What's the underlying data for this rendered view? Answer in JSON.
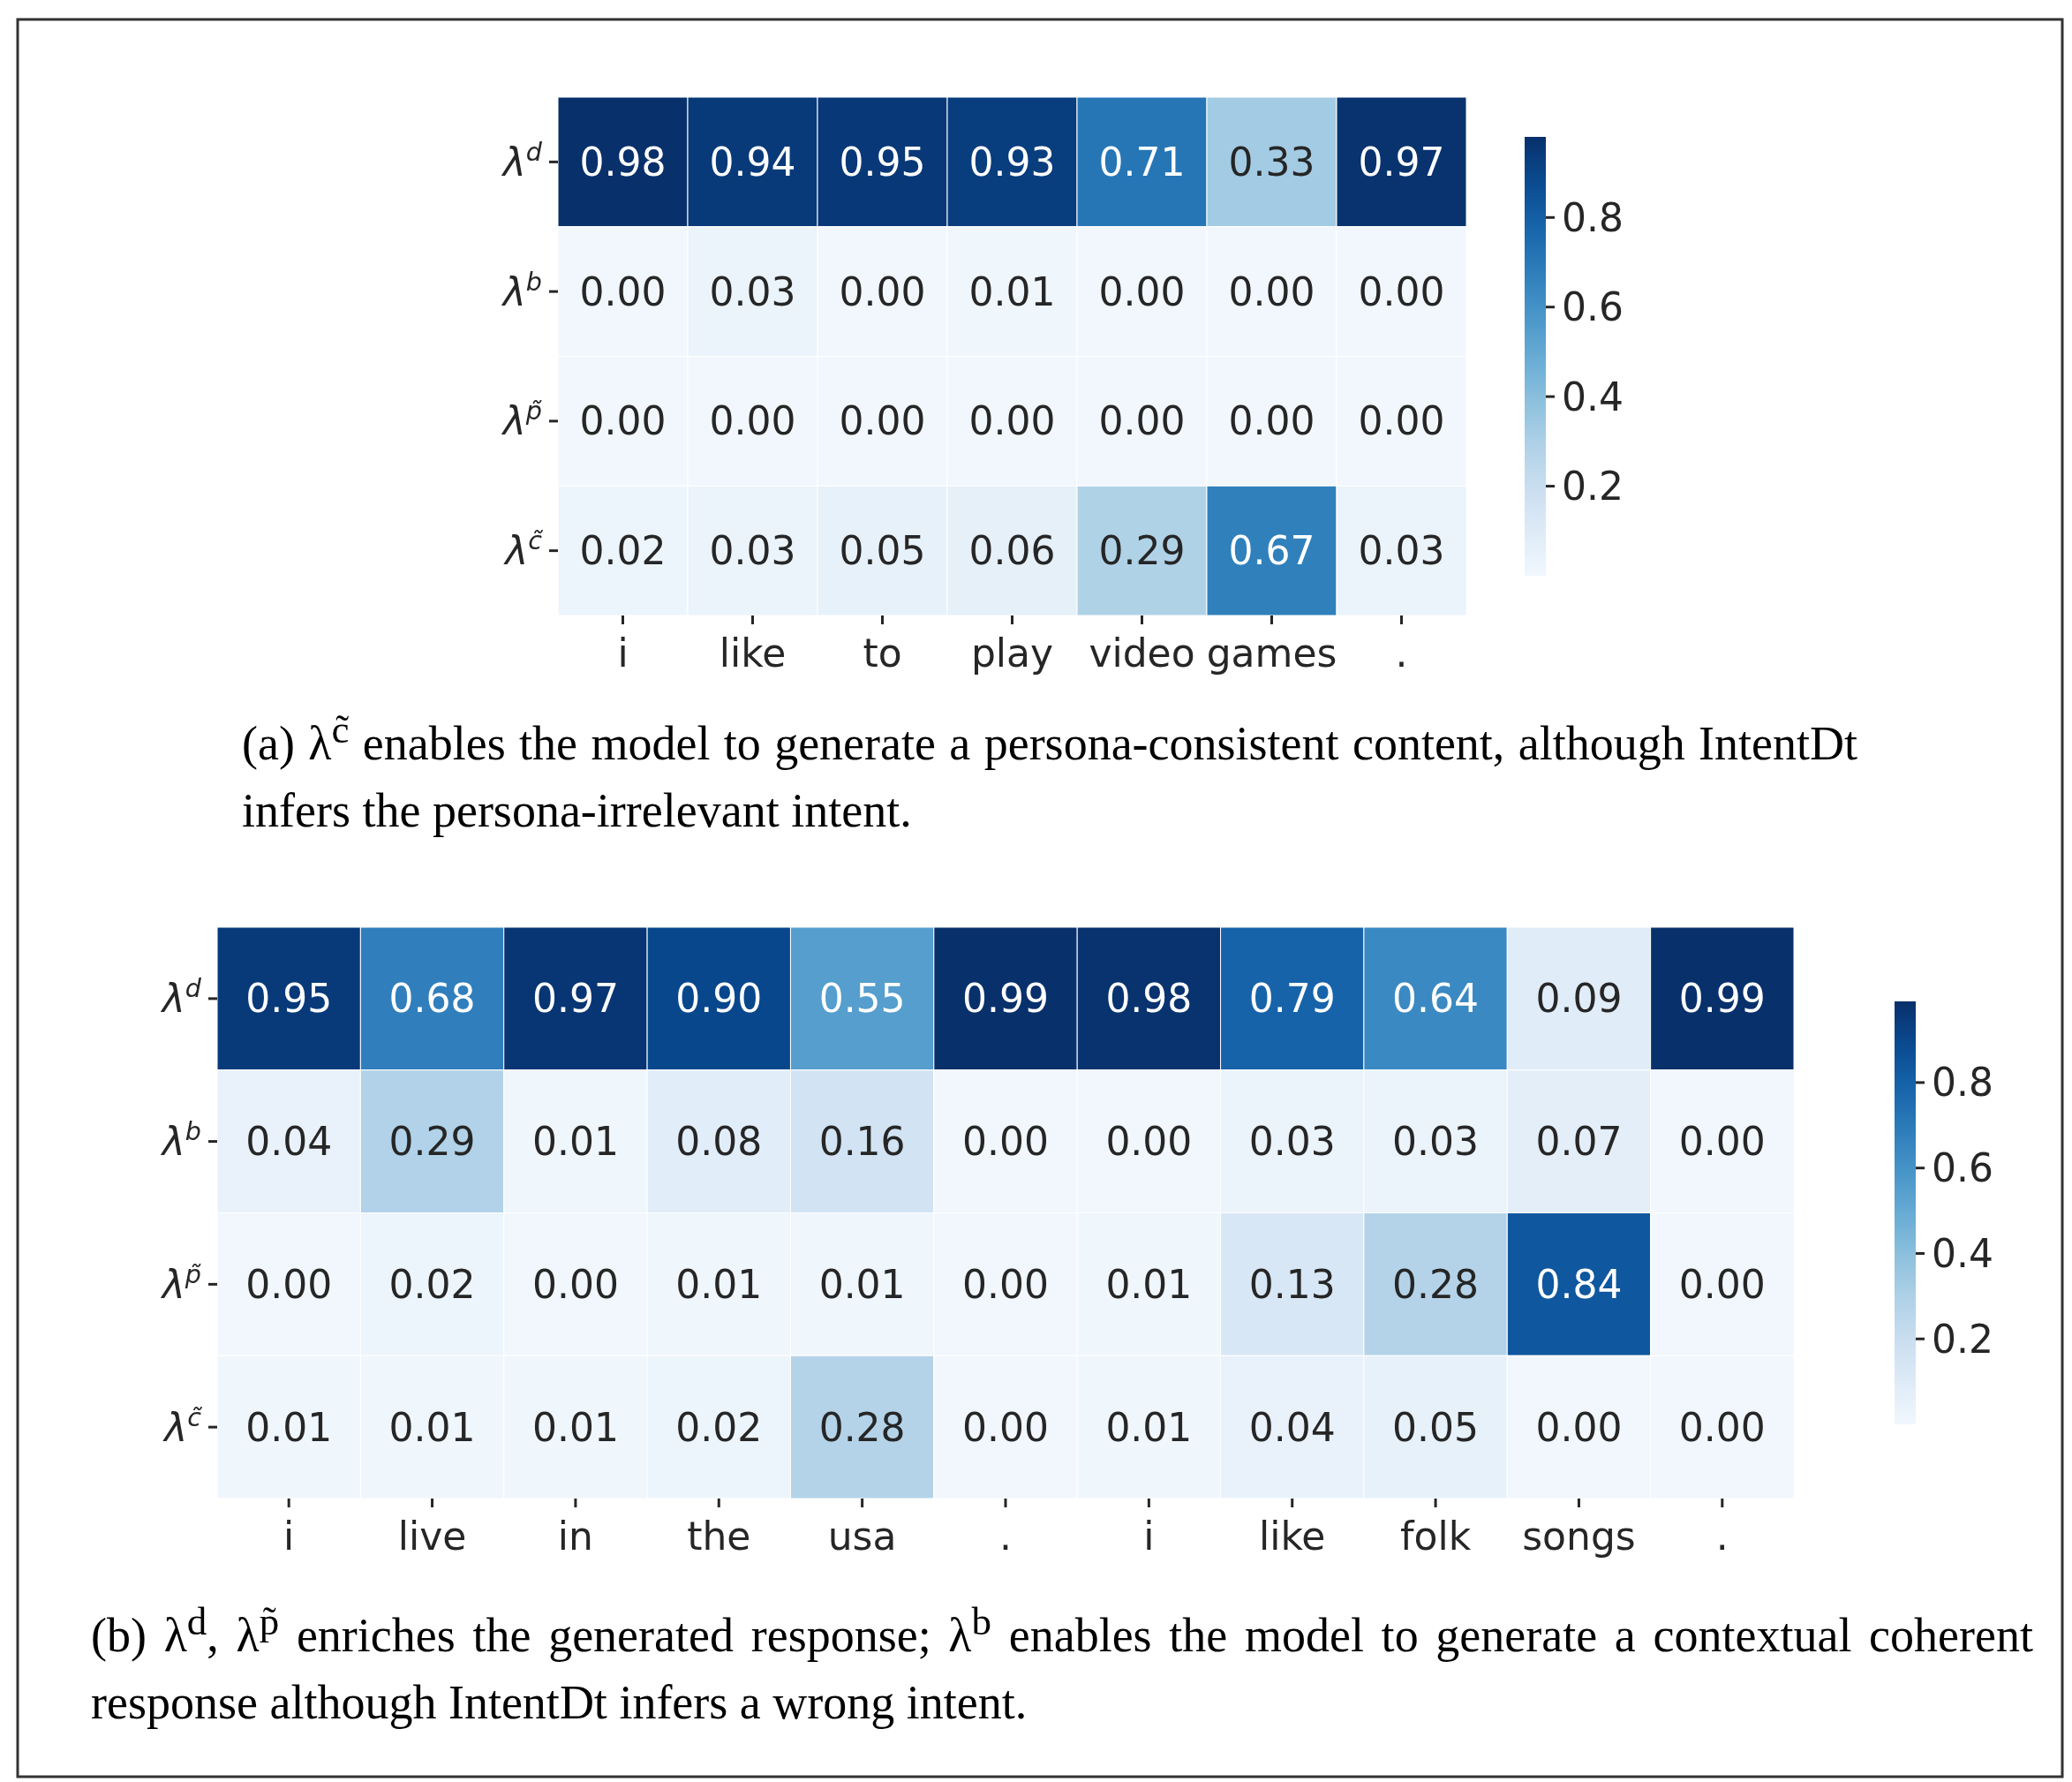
{
  "chart_data": [
    {
      "type": "heatmap",
      "categories": [
        "i",
        "like",
        "to",
        "play",
        "video",
        "games",
        "."
      ],
      "y_categories": [
        "λ$^{d}$",
        "λ$^{b}$",
        "λ$^{p̃}$",
        "λ$^{c̃}$"
      ],
      "cells": [
        [
          0.98,
          0.94,
          0.95,
          0.93,
          0.71,
          0.33,
          0.97
        ],
        [
          0.0,
          0.03,
          0.0,
          0.01,
          0.0,
          0.0,
          0.0
        ],
        [
          0.0,
          0.0,
          0.0,
          0.0,
          0.0,
          0.0,
          0.0
        ],
        [
          0.02,
          0.03,
          0.05,
          0.06,
          0.29,
          0.67,
          0.03
        ]
      ],
      "cell_labels": [
        [
          "0.98",
          "0.94",
          "0.95",
          "0.93",
          "0.71",
          "0.33",
          "0.97"
        ],
        [
          "0.00",
          "0.03",
          "0.00",
          "0.01",
          "0.00",
          "0.00",
          "0.00"
        ],
        [
          "0.00",
          "0.00",
          "0.00",
          "0.00",
          "0.00",
          "0.00",
          "0.00"
        ],
        [
          "0.02",
          "0.03",
          "0.05",
          "0.06",
          "0.29",
          "0.67",
          "0.03"
        ]
      ],
      "clim": [
        0,
        0.98
      ],
      "cticks": [
        0.2,
        0.4,
        0.6,
        0.8
      ],
      "annotations": [
        "(a) λ$^{c̃}$ enables the model to generate a persona-consistent content, although IntentDt infers the persona-irrelevant intent."
      ]
    },
    {
      "type": "heatmap",
      "categories": [
        "i",
        "live",
        "in",
        "the",
        "usa",
        ".",
        "i",
        "like",
        "folk",
        "songs",
        "."
      ],
      "y_categories": [
        "λ$^{d}$",
        "λ$^{b}$",
        "λ$^{p̃}$",
        "λ$^{c̃}$"
      ],
      "cells": [
        [
          0.95,
          0.68,
          0.97,
          0.9,
          0.55,
          0.99,
          0.98,
          0.79,
          0.64,
          0.09,
          0.99
        ],
        [
          0.04,
          0.29,
          0.01,
          0.08,
          0.16,
          0.0,
          0.0,
          0.03,
          0.03,
          0.07,
          0.0
        ],
        [
          0.0,
          0.02,
          0.0,
          0.01,
          0.01,
          0.0,
          0.01,
          0.13,
          0.28,
          0.84,
          0.0
        ],
        [
          0.01,
          0.01,
          0.01,
          0.02,
          0.28,
          0.0,
          0.01,
          0.04,
          0.05,
          0.0,
          0.0
        ]
      ],
      "cell_labels": [
        [
          "0.95",
          "0.68",
          "0.97",
          "0.90",
          "0.55",
          "0.99",
          "0.98",
          "0.79",
          "0.64",
          "0.09",
          "0.99"
        ],
        [
          "0.04",
          "0.29",
          "0.01",
          "0.08",
          "0.16",
          "0.00",
          "0.00",
          "0.03",
          "0.03",
          "0.07",
          "0.00"
        ],
        [
          "0.00",
          "0.02",
          "0.00",
          "0.01",
          "0.01",
          "0.00",
          "0.01",
          "0.13",
          "0.28",
          "0.84",
          "0.00"
        ],
        [
          "0.01",
          "0.01",
          "0.01",
          "0.02",
          "0.28",
          "0.00",
          "0.01",
          "0.04",
          "0.05",
          "0.00",
          "0.00"
        ]
      ],
      "clim": [
        0,
        0.99
      ],
      "cticks": [
        0.2,
        0.4,
        0.6,
        0.8
      ],
      "annotations": [
        "(b) λ$^{d}$, λ$^{p̃}$ enriches the generated response; λ$^{b}$ enables the model to generate a contextual coherent response although IntentDt infers a wrong intent."
      ]
    }
  ]
}
